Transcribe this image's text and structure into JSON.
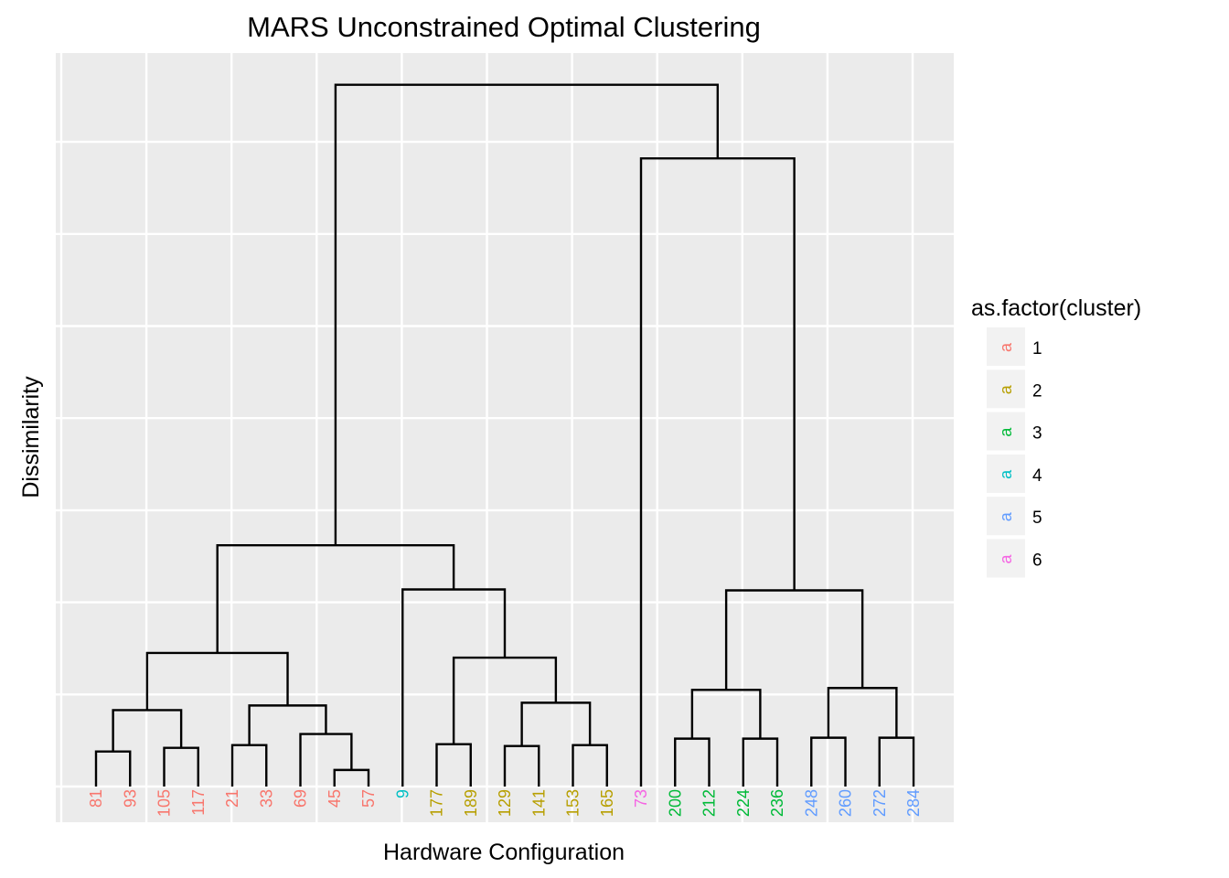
{
  "chart_data": {
    "type": "dendrogram",
    "title": "MARS Unconstrained Optimal Clustering",
    "xlabel": "Hardware Configuration",
    "ylabel": "Dissimilarity",
    "grid": true,
    "legend_placement": "right",
    "legend": {
      "title": "as.factor(cluster)",
      "key_glyph": "a",
      "entries": [
        {
          "label": "1",
          "color": "#F8766D"
        },
        {
          "label": "2",
          "color": "#B79F00"
        },
        {
          "label": "3",
          "color": "#00BA38"
        },
        {
          "label": "4",
          "color": "#00BFC4"
        },
        {
          "label": "5",
          "color": "#619CFF"
        },
        {
          "label": "6",
          "color": "#F564E3"
        }
      ]
    },
    "leaves": [
      {
        "label": "81",
        "cluster": 1
      },
      {
        "label": "93",
        "cluster": 1
      },
      {
        "label": "105",
        "cluster": 1
      },
      {
        "label": "117",
        "cluster": 1
      },
      {
        "label": "21",
        "cluster": 1
      },
      {
        "label": "33",
        "cluster": 1
      },
      {
        "label": "69",
        "cluster": 1
      },
      {
        "label": "45",
        "cluster": 1
      },
      {
        "label": "57",
        "cluster": 1
      },
      {
        "label": "9",
        "cluster": 4
      },
      {
        "label": "177",
        "cluster": 2
      },
      {
        "label": "189",
        "cluster": 2
      },
      {
        "label": "129",
        "cluster": 2
      },
      {
        "label": "141",
        "cluster": 2
      },
      {
        "label": "153",
        "cluster": 2
      },
      {
        "label": "165",
        "cluster": 2
      },
      {
        "label": "73",
        "cluster": 6
      },
      {
        "label": "200",
        "cluster": 3
      },
      {
        "label": "212",
        "cluster": 3
      },
      {
        "label": "224",
        "cluster": 3
      },
      {
        "label": "236",
        "cluster": 3
      },
      {
        "label": "248",
        "cluster": 5
      },
      {
        "label": "260",
        "cluster": 5
      },
      {
        "label": "272",
        "cluster": 5
      },
      {
        "label": "284",
        "cluster": 5
      }
    ],
    "ylim": [
      -0.37,
      8.0
    ],
    "merges": [
      {
        "left": "L0",
        "right": "L1",
        "height": 0.38
      },
      {
        "left": "L2",
        "right": "L3",
        "height": 0.42
      },
      {
        "left": "L4",
        "right": "L5",
        "height": 0.45
      },
      {
        "left": "L7",
        "right": "L8",
        "height": 0.18
      },
      {
        "left": "L6",
        "right": "N3",
        "height": 0.57
      },
      {
        "left": "L10",
        "right": "L11",
        "height": 0.46
      },
      {
        "left": "L12",
        "right": "L13",
        "height": 0.44
      },
      {
        "left": "L14",
        "right": "L15",
        "height": 0.45
      },
      {
        "left": "L17",
        "right": "L18",
        "height": 0.52
      },
      {
        "left": "L19",
        "right": "L20",
        "height": 0.52
      },
      {
        "left": "L21",
        "right": "L22",
        "height": 0.53
      },
      {
        "left": "L23",
        "right": "L24",
        "height": 0.53
      },
      {
        "left": "N0",
        "right": "N1",
        "height": 0.83
      },
      {
        "left": "N2",
        "right": "N4",
        "height": 0.88
      },
      {
        "left": "N6",
        "right": "N7",
        "height": 0.91
      },
      {
        "left": "N8",
        "right": "N9",
        "height": 1.05
      },
      {
        "left": "N10",
        "right": "N11",
        "height": 1.07
      },
      {
        "left": "N12",
        "right": "N13",
        "height": 1.45
      },
      {
        "left": "N5",
        "right": "N14",
        "height": 1.4
      },
      {
        "left": "L9",
        "right": "N18",
        "height": 2.14
      },
      {
        "left": "N15",
        "right": "N16",
        "height": 2.13
      },
      {
        "left": "N17",
        "right": "N19",
        "height": 2.62
      },
      {
        "left": "L16",
        "right": "N20",
        "height": 6.82
      },
      {
        "left": "N21",
        "right": "N22",
        "height": 7.62
      }
    ]
  }
}
